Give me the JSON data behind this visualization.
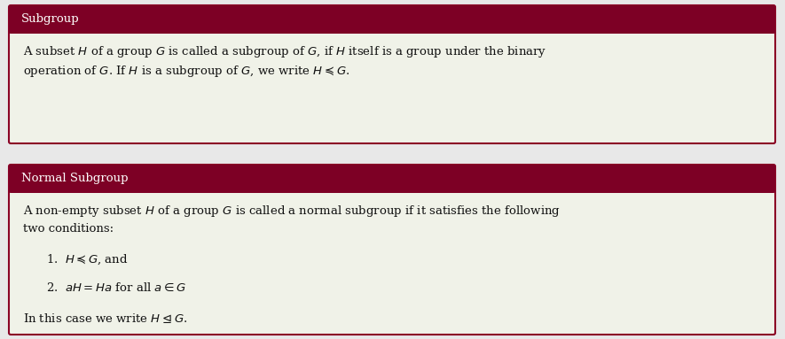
{
  "background_color": "#e8e8e8",
  "header_color": "#7d0025",
  "box_bg_color": "#f0f2e8",
  "box_border_color": "#8B0025",
  "header_text_color": "#ffffff",
  "body_text_color": "#111111",
  "box1_header": "Subgroup",
  "box1_line1": "A subset $H$ of a group $G$ is called a subgroup of $G$, if $H$ itself is a group under the binary",
  "box1_line2": "operation of $G$. If $H$ is a subgroup of $G$, we write $H \\preceq G$.",
  "box2_header": "Normal Subgroup",
  "box2_line1": "A non-empty subset $H$ of a group $G$ is called a normal subgroup if it satisfies the following",
  "box2_line2": "two conditions:",
  "box2_item1": "1.  $H \\preceq G$, and",
  "box2_item2": "2.  $aH = Ha$ for all $a \\in G$",
  "box2_conc": "In this case we write $H \\trianglelefteq G$.",
  "figsize": [
    8.85,
    3.83
  ],
  "dpi": 100
}
